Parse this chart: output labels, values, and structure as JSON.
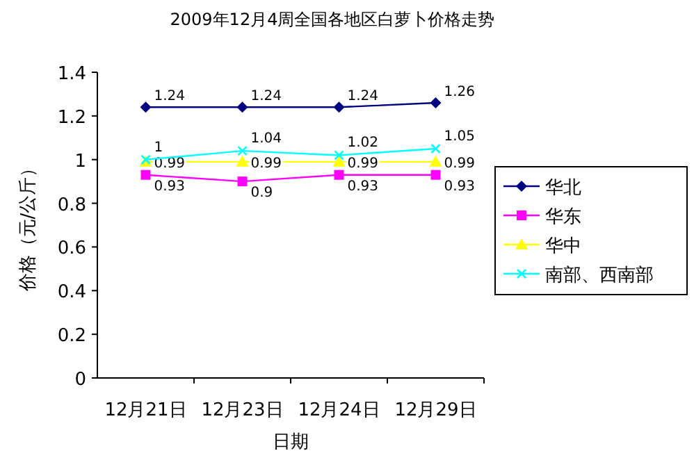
{
  "chart_data": {
    "type": "line",
    "title": "2009年12月4周全国各地区白萝卜价格走势",
    "xlabel": "日期",
    "ylabel": "价格（元/公斤）",
    "categories": [
      "12月21日",
      "12月23日",
      "12月24日",
      "12月29日"
    ],
    "series": [
      {
        "name": "华北",
        "color": "#000080",
        "marker": "diamond",
        "values": [
          1.24,
          1.24,
          1.24,
          1.26
        ]
      },
      {
        "name": "华东",
        "color": "#ff00ff",
        "marker": "square",
        "values": [
          0.93,
          0.9,
          0.93,
          0.93
        ]
      },
      {
        "name": "华中",
        "color": "#ffff00",
        "marker": "triangle",
        "values": [
          0.99,
          0.99,
          0.99,
          0.99
        ]
      },
      {
        "name": "南部、西南部",
        "color": "#00ffff",
        "marker": "cross",
        "values": [
          1,
          1.04,
          1.02,
          1.05
        ]
      }
    ],
    "ylim": [
      0,
      1.4
    ],
    "yticks": [
      0,
      0.2,
      0.4,
      0.6,
      0.8,
      1,
      1.2,
      1.4
    ],
    "data_labels": true,
    "legend": "right",
    "grid": false,
    "line_style": "solid"
  }
}
